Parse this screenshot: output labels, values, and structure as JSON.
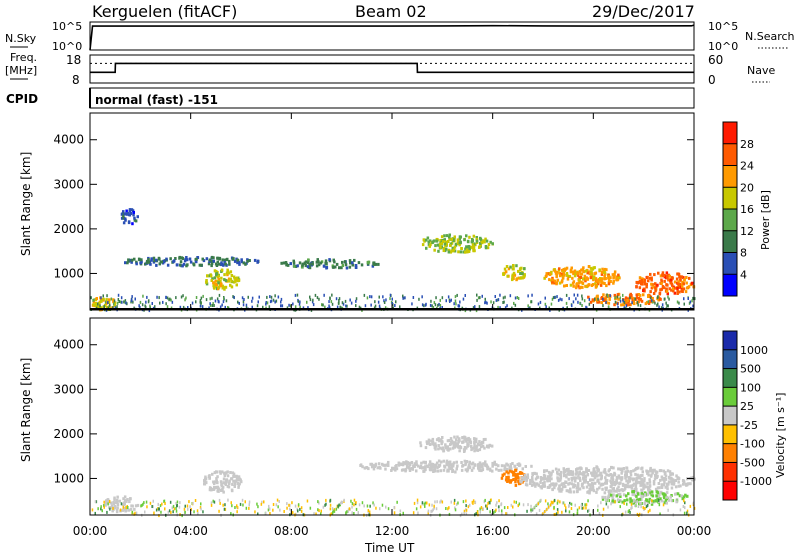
{
  "header": {
    "station": "Kerguelen (fitACF)",
    "beam": "Beam 02",
    "date": "29/Dec/2017"
  },
  "nsky_panel": {
    "left_label": "N.Sky",
    "left_ticks": [
      "10^5",
      "10^0"
    ],
    "right_label": "N.Search",
    "right_ticks": [
      "10^5",
      "10^0"
    ]
  },
  "freq_panel": {
    "left_label_1": "Freq.",
    "left_label_2": "[MHz]",
    "left_ticks": [
      "18",
      "8"
    ],
    "right_label": "Nave",
    "right_ticks": [
      "60",
      "0"
    ]
  },
  "cpid": {
    "label": "CPID",
    "value": "normal (fast) -151"
  },
  "power_panel": {
    "ylabel": "Slant Range [km]",
    "yticks": [
      "4000",
      "3000",
      "2000",
      "1000"
    ],
    "colorbar_label": "Power [dB]",
    "colorbar_ticks": [
      "28",
      "24",
      "20",
      "16",
      "12",
      "8",
      "4"
    ],
    "colorbar_colors": [
      "#0000ff",
      "#2a4fb5",
      "#3a7a4a",
      "#5ca84a",
      "#c8c800",
      "#ff9a00",
      "#ff5a00",
      "#ff1a00"
    ]
  },
  "velocity_panel": {
    "ylabel": "Slant Range [km]",
    "yticks": [
      "4000",
      "3000",
      "2000",
      "1000"
    ],
    "colorbar_label": "Velocity [m s⁻¹]",
    "colorbar_ticks": [
      "1000",
      "500",
      "100",
      "25",
      "-25",
      "-100",
      "-500",
      "-1000"
    ],
    "colorbar_colors": [
      "#1a2aaa",
      "#2a5aa0",
      "#3a8a4a",
      "#6acc3a",
      "#c8c8c8",
      "#ffc000",
      "#ff8000",
      "#ff3000",
      "#ff0000"
    ]
  },
  "xaxis": {
    "label": "Time UT",
    "ticks": [
      "00:00",
      "04:00",
      "08:00",
      "12:00",
      "16:00",
      "20:00",
      "00:00"
    ]
  },
  "chart_data": [
    {
      "type": "line",
      "title": "N.Sky / N.Search",
      "x_hours": [
        0,
        0.1,
        4,
        8,
        12,
        14,
        16,
        18,
        20,
        23.9,
        24
      ],
      "series": [
        {
          "name": "N.Sky",
          "values": [
            1,
            40000,
            40000,
            40000,
            40000,
            42000,
            48000,
            43000,
            41000,
            44000,
            60000
          ]
        }
      ]
    },
    {
      "type": "line",
      "title": "Freq. / Nave",
      "x_hours": [
        0,
        1,
        1.01,
        13,
        13.01,
        24
      ],
      "series": [
        {
          "name": "Freq. [MHz]",
          "values": [
            11.8,
            11.8,
            15.0,
            15.0,
            11.8,
            11.8
          ]
        }
      ],
      "nave_level": 42,
      "ylim": [
        8,
        18
      ]
    },
    {
      "type": "heatmap",
      "title": "Power [dB]",
      "xlim": [
        0,
        24
      ],
      "ylim": [
        180,
        4600
      ],
      "blobs": [
        {
          "x": 0.5,
          "y": 350,
          "w": 1.0,
          "h": 300,
          "v": 20
        },
        {
          "x": 5.2,
          "y": 900,
          "w": 1.4,
          "h": 450,
          "v": 18
        },
        {
          "x": 4.0,
          "y": 1300,
          "w": 5.5,
          "h": 200,
          "v": 8
        },
        {
          "x": 9.5,
          "y": 1250,
          "w": 4.0,
          "h": 200,
          "v": 10
        },
        {
          "x": 14.5,
          "y": 1700,
          "w": 3.0,
          "h": 400,
          "v": 16
        },
        {
          "x": 16.8,
          "y": 1050,
          "w": 1.0,
          "h": 350,
          "v": 18
        },
        {
          "x": 19.5,
          "y": 950,
          "w": 3.0,
          "h": 500,
          "v": 22
        },
        {
          "x": 22.8,
          "y": 800,
          "w": 2.4,
          "h": 500,
          "v": 26
        },
        {
          "x": 21.2,
          "y": 450,
          "w": 3.2,
          "h": 250,
          "v": 24
        },
        {
          "x": 1.5,
          "y": 2300,
          "w": 0.7,
          "h": 350,
          "v": 6
        }
      ]
    },
    {
      "type": "heatmap",
      "title": "Velocity [m s⁻¹]",
      "xlim": [
        0,
        24
      ],
      "ylim": [
        180,
        4600
      ],
      "blobs": [
        {
          "x": 5.2,
          "y": 950,
          "w": 1.6,
          "h": 500,
          "v": 0
        },
        {
          "x": 14.5,
          "y": 1800,
          "w": 3.0,
          "h": 350,
          "v": 0
        },
        {
          "x": 14.0,
          "y": 1300,
          "w": 7.0,
          "h": 250,
          "v": 0
        },
        {
          "x": 16.8,
          "y": 1050,
          "w": 1.0,
          "h": 350,
          "v": -400
        },
        {
          "x": 20.5,
          "y": 1000,
          "w": 7.0,
          "h": 600,
          "v": 0
        },
        {
          "x": 1.2,
          "y": 450,
          "w": 1.4,
          "h": 350,
          "v": 0
        },
        {
          "x": 22.0,
          "y": 600,
          "w": 3.5,
          "h": 300,
          "v": 30
        }
      ]
    }
  ]
}
